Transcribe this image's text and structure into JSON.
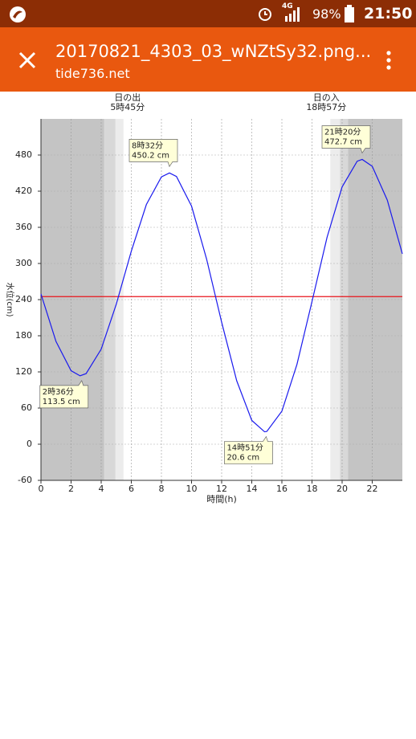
{
  "status_bar": {
    "network": "4G",
    "battery": "98%",
    "time": "21:50"
  },
  "app_bar": {
    "title": "20170821_4303_03_wNZtSy32.png...",
    "subtitle": "tide736.net"
  },
  "chart_data": {
    "type": "line",
    "y_label": "水位(cm)",
    "x_label": "時間(h)",
    "xlim": [
      0,
      24
    ],
    "xticks": [
      0,
      2,
      4,
      6,
      8,
      10,
      12,
      14,
      16,
      18,
      20,
      22
    ],
    "ylim": [
      -60,
      540
    ],
    "yticks": [
      -60,
      0,
      60,
      120,
      180,
      240,
      300,
      360,
      420,
      480
    ],
    "grid": true,
    "sunrise": {
      "label": "日の出",
      "time": "5時45分",
      "x": 5.75
    },
    "sunset": {
      "label": "日の入",
      "time": "18時57分",
      "x": 18.95
    },
    "reference_line": {
      "value": 245,
      "color": "#e8141b"
    },
    "series": [
      {
        "color": "#1a1aee",
        "x": [
          0,
          1,
          2,
          2.6,
          3,
          4,
          5,
          6,
          7,
          8,
          8.533,
          9,
          10,
          11,
          12,
          13,
          14,
          14.85,
          15,
          16,
          17,
          18,
          19,
          20,
          21,
          21.333,
          22,
          23,
          24
        ],
        "values": [
          249.5,
          170.4,
          121.9,
          113.5,
          117.2,
          157.8,
          232.2,
          320.4,
          397.8,
          443.7,
          450.2,
          444.4,
          395.3,
          307.3,
          202.4,
          105.3,
          39.5,
          20.6,
          21.2,
          54.8,
          132.4,
          236.8,
          343.4,
          427.1,
          469.7,
          472.7,
          461.3,
          405.2,
          316
        ]
      }
    ],
    "annotations": [
      {
        "x": 2.6,
        "y": 113.5,
        "time": "2時36分",
        "label": "113.5 cm",
        "position": "below-left"
      },
      {
        "x": 8.533,
        "y": 450.2,
        "time": "8時32分",
        "label": "450.2 cm",
        "position": "above-left"
      },
      {
        "x": 14.85,
        "y": 20.6,
        "time": "14時51分",
        "label": "20.6 cm",
        "position": "below-left"
      },
      {
        "x": 21.333,
        "y": 472.7,
        "time": "21時20分",
        "label": "472.7 cm",
        "position": "above-left"
      }
    ]
  }
}
